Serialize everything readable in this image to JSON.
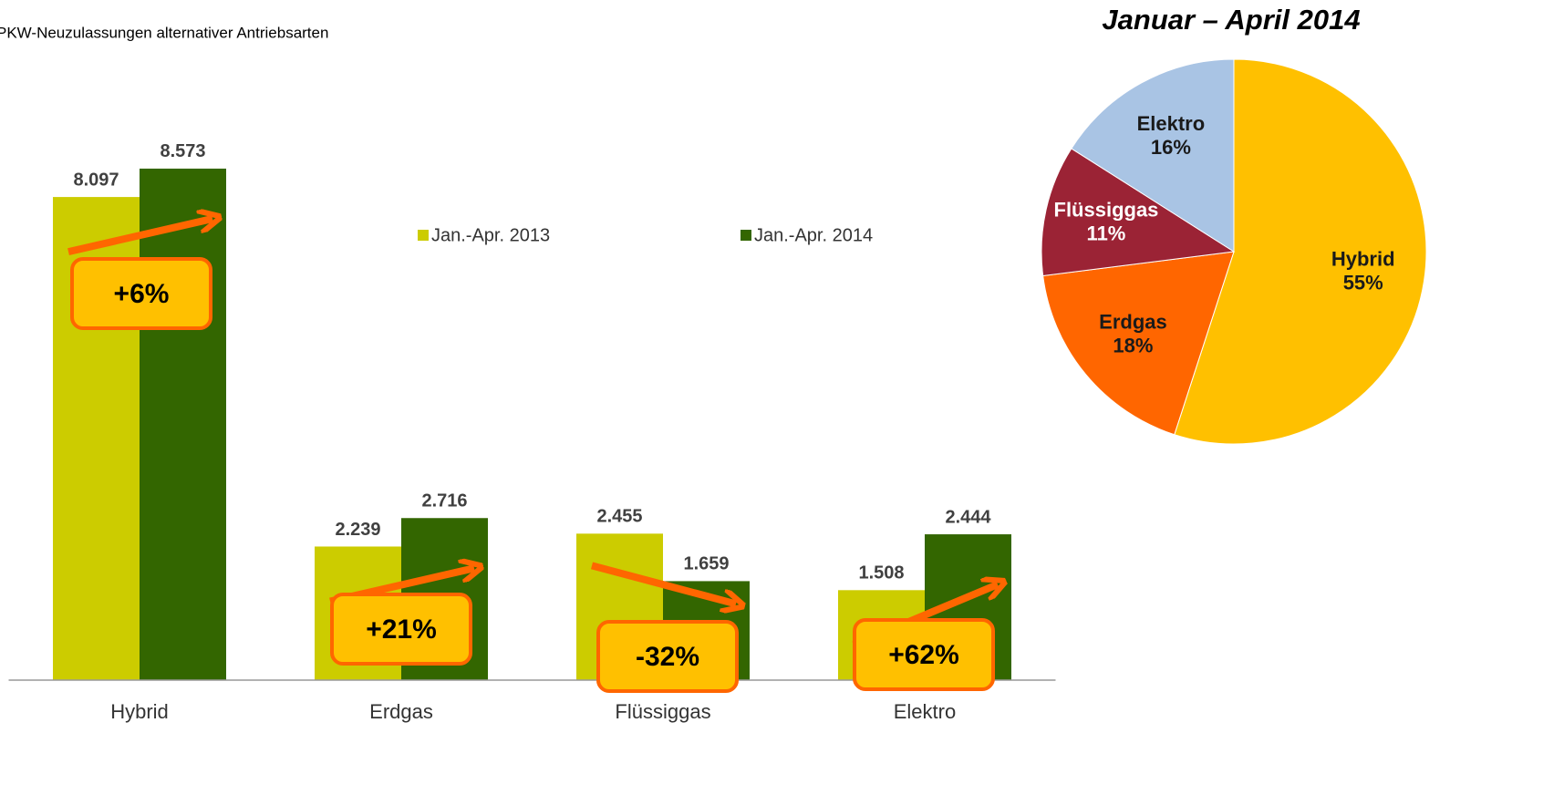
{
  "chart_data": [
    {
      "type": "bar",
      "title": "PKW-Neuzulassungen alternativer Antriebsarten",
      "categories": [
        "Hybrid",
        "Erdgas",
        "Flüssiggas",
        "Elektro"
      ],
      "series": [
        {
          "name": "Jan.-Apr. 2013",
          "color": "#cccc00",
          "values": [
            8097,
            2239,
            2455,
            1508
          ],
          "value_labels": [
            "8.097",
            "2.239",
            "2.455",
            "1.508"
          ]
        },
        {
          "name": "Jan.-Apr. 2014",
          "color": "#336600",
          "values": [
            8573,
            2716,
            1659,
            2444
          ],
          "value_labels": [
            "8.573",
            "2.716",
            "1.659",
            "2.444"
          ]
        }
      ],
      "ylim": [
        0,
        9000
      ],
      "annotations": [
        "+6%",
        "+21%",
        "-32%",
        "+62%"
      ]
    },
    {
      "type": "pie",
      "title": "Januar – April 2014",
      "categories": [
        "Hybrid",
        "Erdgas",
        "Flüssiggas",
        "Elektro"
      ],
      "values": [
        55,
        18,
        11,
        16
      ],
      "value_labels": [
        "55%",
        "18%",
        "11%",
        "16%"
      ],
      "colors": [
        "#ffc000",
        "#ff6600",
        "#9b2335",
        "#a9c4e4"
      ]
    }
  ]
}
